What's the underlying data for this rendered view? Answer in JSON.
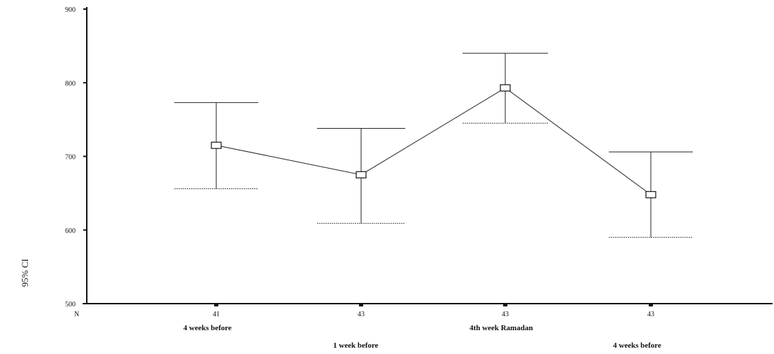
{
  "chart_data": {
    "type": "line",
    "title": "",
    "ylabel": "95% CI",
    "xlabel": "",
    "ylim": [
      500,
      900
    ],
    "yticks": [
      500,
      600,
      700,
      800,
      900
    ],
    "n_label": "N",
    "categories": [
      "4 weeks before",
      "1 week before",
      "4th week Ramadan",
      "4 weeks before"
    ],
    "n_values": [
      "41",
      "43",
      "43",
      "43"
    ],
    "means": [
      715,
      675,
      793,
      648
    ],
    "ci_upper": [
      773,
      738,
      840,
      706
    ],
    "ci_lower": [
      656,
      609,
      745,
      590
    ],
    "grid": false,
    "legend": "none",
    "marker": "square-open"
  }
}
